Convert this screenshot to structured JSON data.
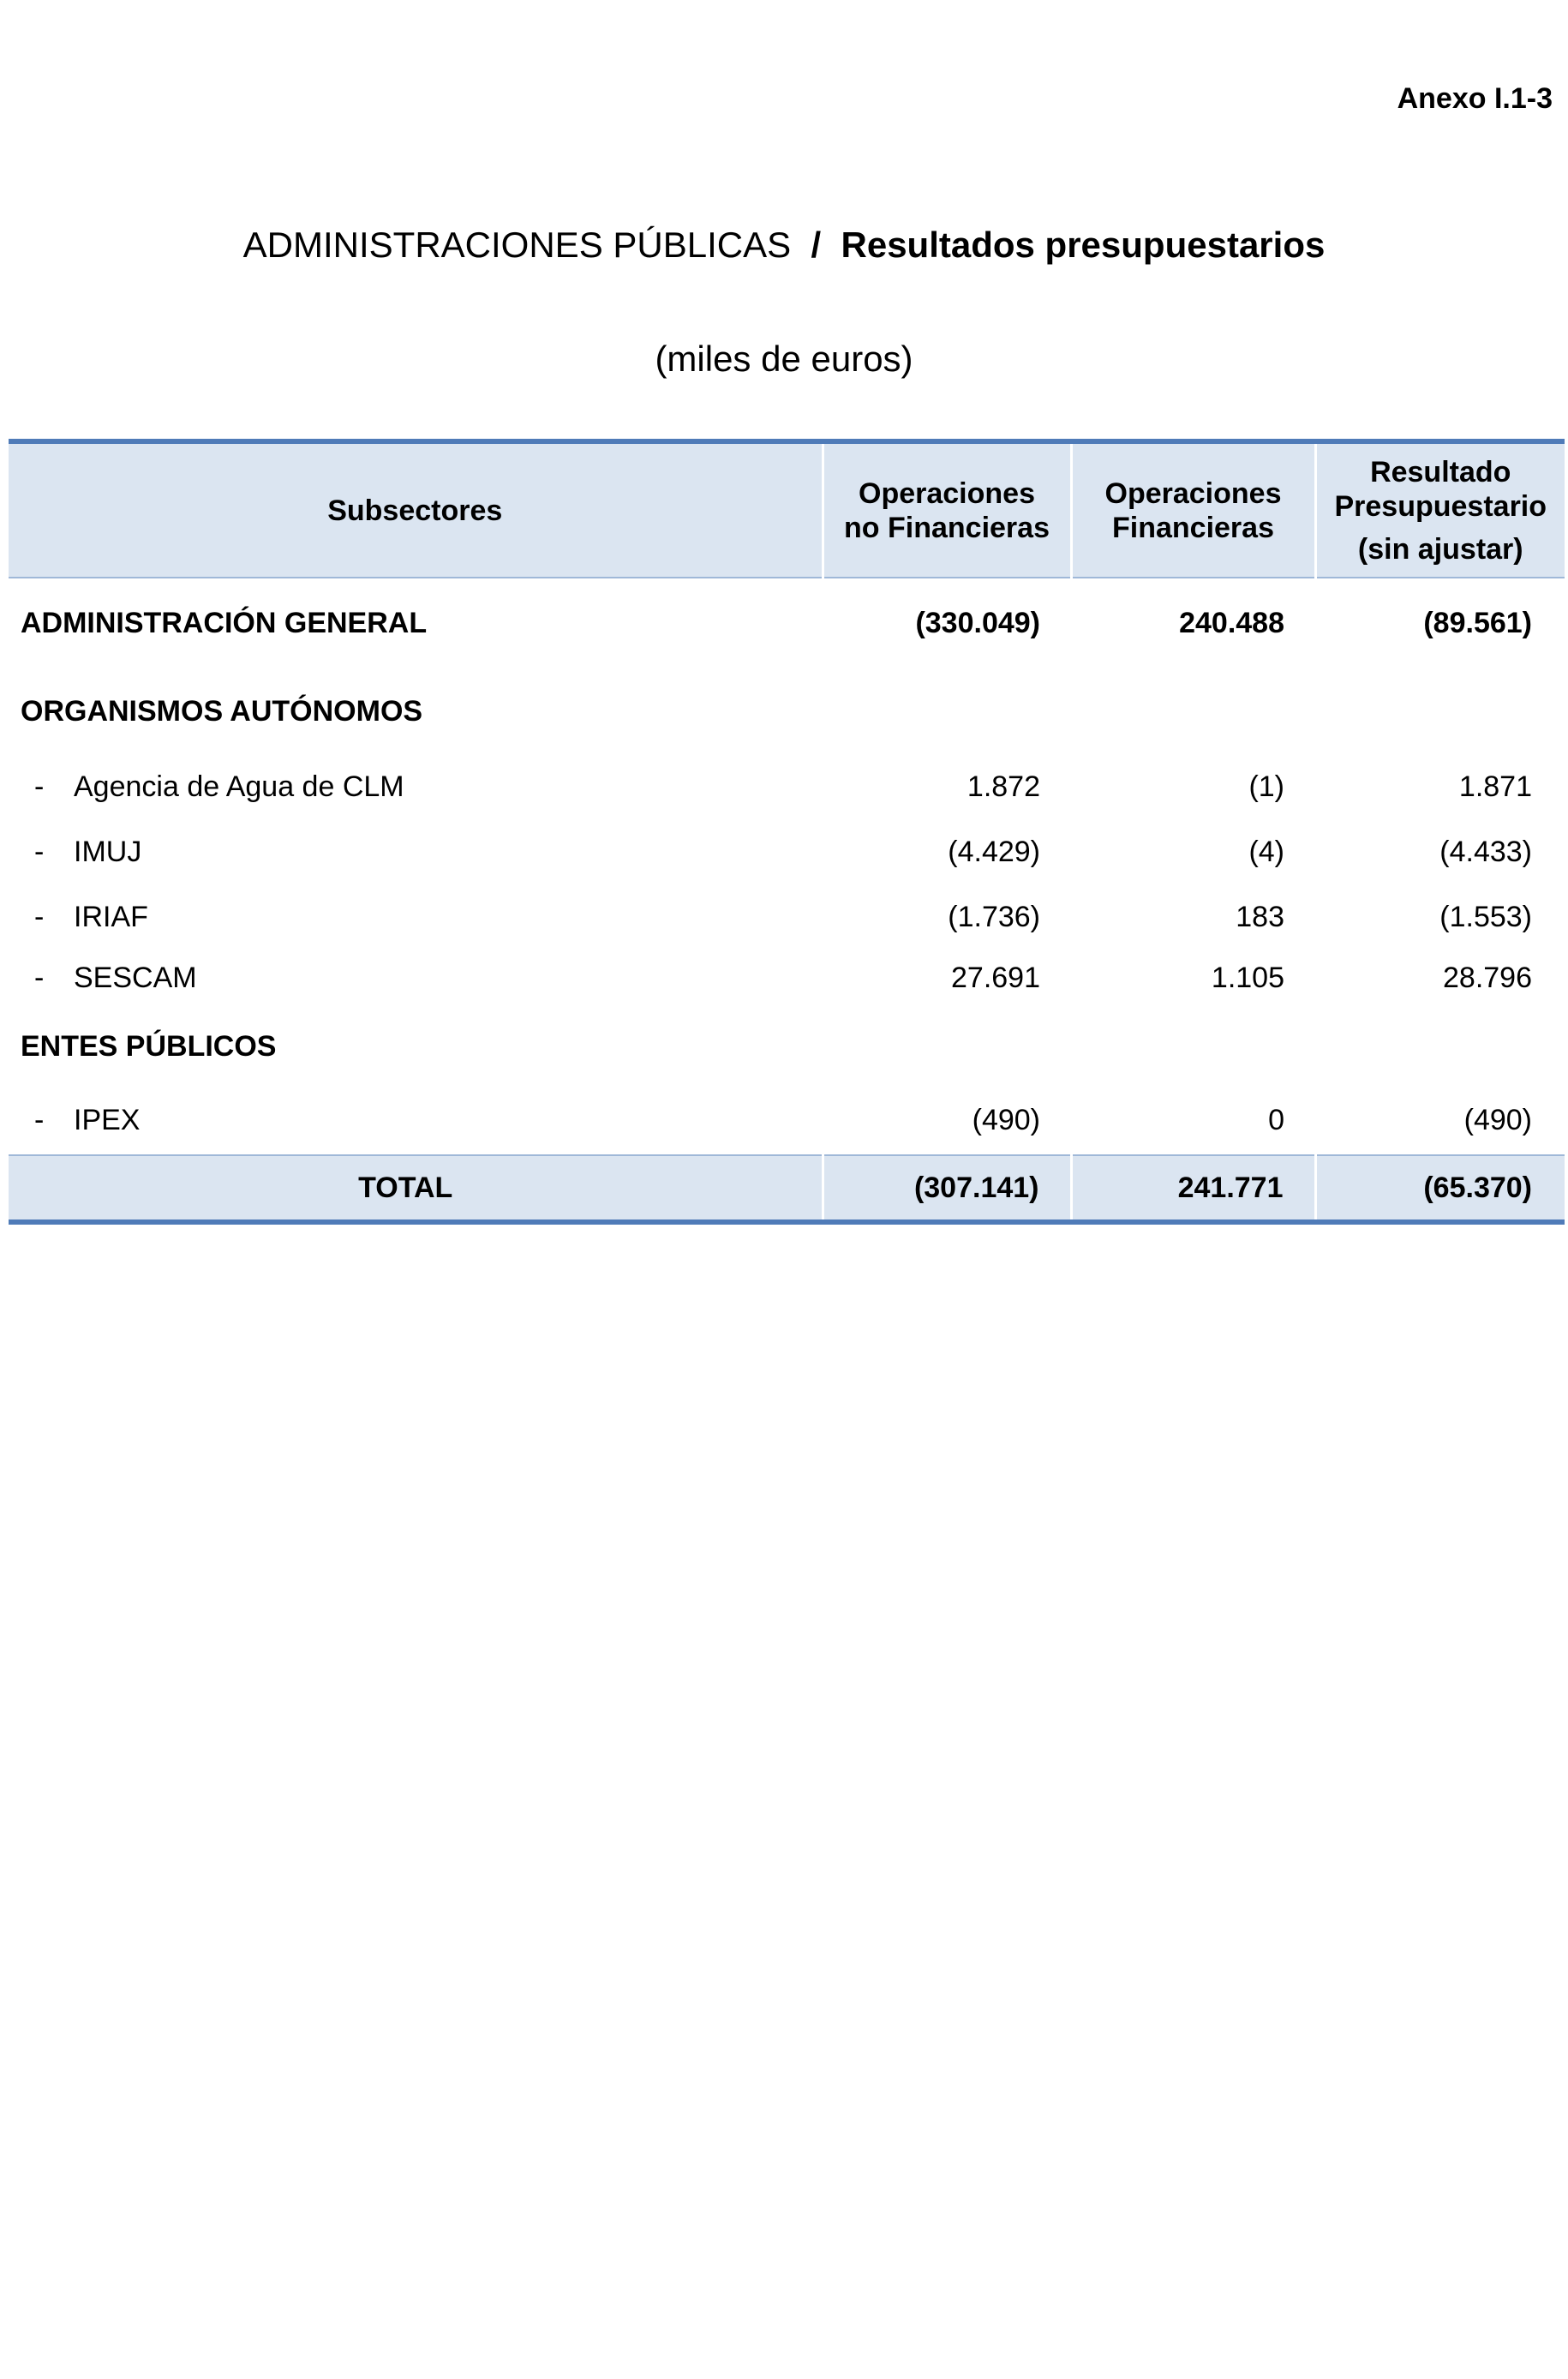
{
  "annex_label": "Anexo I.1-3",
  "title": {
    "part1": "ADMINISTRACIONES PÚBLICAS",
    "separator": "/",
    "part2": "Resultados presupuestarios"
  },
  "subtitle": "(miles de euros)",
  "table": {
    "headers": {
      "subsectores": "Subsectores",
      "op_no_fin_line1": "Operaciones",
      "op_no_fin_line2": "no Financieras",
      "op_fin_line1": "Operaciones",
      "op_fin_line2": "Financieras",
      "resultado_line1": "Resultado",
      "resultado_line2": "Presupuestario",
      "resultado_line3": "(sin ajustar)"
    },
    "admin_general": {
      "label": "ADMINISTRACIÓN GENERAL",
      "no_fin": "(330.049)",
      "fin": "240.488",
      "resultado": "(89.561)"
    },
    "org_autonomos_label": "ORGANISMOS AUTÓNOMOS",
    "org_autonomos": [
      {
        "dash": "-",
        "label": "Agencia de Agua de CLM",
        "no_fin": "1.872",
        "fin": "(1)",
        "resultado": "1.871"
      },
      {
        "dash": "-",
        "label": "IMUJ",
        "no_fin": "(4.429)",
        "fin": "(4)",
        "resultado": "(4.433)"
      },
      {
        "dash": "-",
        "label": "IRIAF",
        "no_fin": "(1.736)",
        "fin": "183",
        "resultado": "(1.553)"
      },
      {
        "dash": "-",
        "label": "SESCAM",
        "no_fin": "27.691",
        "fin": "1.105",
        "resultado": "28.796"
      }
    ],
    "entes_publicos_label": "ENTES PÚBLICOS",
    "entes_publicos": [
      {
        "dash": "-",
        "label": "IPEX",
        "no_fin": "(490)",
        "fin": "0",
        "resultado": "(490)"
      }
    ],
    "total": {
      "label": "TOTAL",
      "no_fin": "(307.141)",
      "fin": "241.771",
      "resultado": "(65.370)"
    }
  }
}
